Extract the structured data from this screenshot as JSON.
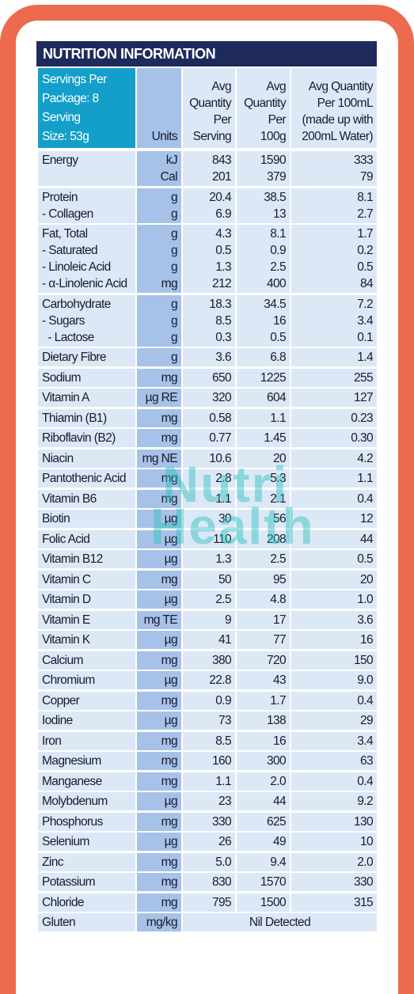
{
  "header": {
    "title": "NUTRITION INFORMATION",
    "servings": [
      "Servings Per",
      "Package: 8",
      "Serving",
      "Size: 53g"
    ],
    "units": "Units",
    "serving": [
      "Avg",
      "Quantity",
      "Per",
      "Serving"
    ],
    "per100g": [
      "Avg",
      "Quantity",
      "Per",
      "100g"
    ],
    "per100ml": [
      "Avg Quantity",
      "Per 100mL",
      "(made up with",
      "200mL Water)"
    ]
  },
  "rows": [
    {
      "nutrient": [
        "Energy",
        ""
      ],
      "units": [
        "kJ",
        "Cal"
      ],
      "serving": [
        "843",
        "201"
      ],
      "per100g": [
        "1590",
        "379"
      ],
      "per100ml": [
        "333",
        "79"
      ]
    },
    {
      "nutrient": [
        "Protein",
        "- Collagen"
      ],
      "units": [
        "g",
        "g"
      ],
      "serving": [
        "20.4",
        "6.9"
      ],
      "per100g": [
        "38.5",
        "13"
      ],
      "per100ml": [
        "8.1",
        "2.7"
      ]
    },
    {
      "nutrient": [
        "Fat, Total",
        "- Saturated",
        "- Linoleic Acid",
        "- α-Linolenic Acid"
      ],
      "units": [
        "g",
        "g",
        "g",
        "mg"
      ],
      "serving": [
        "4.3",
        "0.5",
        "1.3",
        "212"
      ],
      "per100g": [
        "8.1",
        "0.9",
        "2.5",
        "400"
      ],
      "per100ml": [
        "1.7",
        "0.2",
        "0.5",
        "84"
      ]
    },
    {
      "nutrient": [
        "Carbohydrate",
        "- Sugars",
        "  - Lactose"
      ],
      "units": [
        "g",
        "g",
        "g"
      ],
      "serving": [
        "18.3",
        "8.5",
        "0.3"
      ],
      "per100g": [
        "34.5",
        "16",
        "0.5"
      ],
      "per100ml": [
        "7.2",
        "3.4",
        "0.1"
      ]
    },
    {
      "nutrient": [
        "Dietary Fibre"
      ],
      "units": [
        "g"
      ],
      "serving": [
        "3.6"
      ],
      "per100g": [
        "6.8"
      ],
      "per100ml": [
        "1.4"
      ]
    },
    {
      "nutrient": [
        "Sodium"
      ],
      "units": [
        "mg"
      ],
      "serving": [
        "650"
      ],
      "per100g": [
        "1225"
      ],
      "per100ml": [
        "255"
      ]
    },
    {
      "nutrient": [
        "Vitamin A"
      ],
      "units": [
        "µg RE"
      ],
      "serving": [
        "320"
      ],
      "per100g": [
        "604"
      ],
      "per100ml": [
        "127"
      ]
    },
    {
      "nutrient": [
        "Thiamin (B1)"
      ],
      "units": [
        "mg"
      ],
      "serving": [
        "0.58"
      ],
      "per100g": [
        "1.1"
      ],
      "per100ml": [
        "0.23"
      ]
    },
    {
      "nutrient": [
        "Riboflavin (B2)"
      ],
      "units": [
        "mg"
      ],
      "serving": [
        "0.77"
      ],
      "per100g": [
        "1.45"
      ],
      "per100ml": [
        "0.30"
      ]
    },
    {
      "nutrient": [
        "Niacin"
      ],
      "units": [
        "mg NE"
      ],
      "serving": [
        "10.6"
      ],
      "per100g": [
        "20"
      ],
      "per100ml": [
        "4.2"
      ]
    },
    {
      "nutrient": [
        "Pantothenic Acid"
      ],
      "units": [
        "mg"
      ],
      "serving": [
        "2.8"
      ],
      "per100g": [
        "5.3"
      ],
      "per100ml": [
        "1.1"
      ]
    },
    {
      "nutrient": [
        "Vitamin B6"
      ],
      "units": [
        "mg"
      ],
      "serving": [
        "1.1"
      ],
      "per100g": [
        "2.1"
      ],
      "per100ml": [
        "0.4"
      ]
    },
    {
      "nutrient": [
        "Biotin"
      ],
      "units": [
        "µg"
      ],
      "serving": [
        "30"
      ],
      "per100g": [
        "56"
      ],
      "per100ml": [
        "12"
      ]
    },
    {
      "nutrient": [
        "Folic Acid"
      ],
      "units": [
        "µg"
      ],
      "serving": [
        "110"
      ],
      "per100g": [
        "208"
      ],
      "per100ml": [
        "44"
      ]
    },
    {
      "nutrient": [
        "Vitamin B12"
      ],
      "units": [
        "µg"
      ],
      "serving": [
        "1.3"
      ],
      "per100g": [
        "2.5"
      ],
      "per100ml": [
        "0.5"
      ]
    },
    {
      "nutrient": [
        "Vitamin C"
      ],
      "units": [
        "mg"
      ],
      "serving": [
        "50"
      ],
      "per100g": [
        "95"
      ],
      "per100ml": [
        "20"
      ]
    },
    {
      "nutrient": [
        "Vitamin D"
      ],
      "units": [
        "µg"
      ],
      "serving": [
        "2.5"
      ],
      "per100g": [
        "4.8"
      ],
      "per100ml": [
        "1.0"
      ]
    },
    {
      "nutrient": [
        "Vitamin E"
      ],
      "units": [
        "mg TE"
      ],
      "serving": [
        "9"
      ],
      "per100g": [
        "17"
      ],
      "per100ml": [
        "3.6"
      ]
    },
    {
      "nutrient": [
        "Vitamin K"
      ],
      "units": [
        "µg"
      ],
      "serving": [
        "41"
      ],
      "per100g": [
        "77"
      ],
      "per100ml": [
        "16"
      ]
    },
    {
      "nutrient": [
        "Calcium"
      ],
      "units": [
        "mg"
      ],
      "serving": [
        "380"
      ],
      "per100g": [
        "720"
      ],
      "per100ml": [
        "150"
      ]
    },
    {
      "nutrient": [
        "Chromium"
      ],
      "units": [
        "µg"
      ],
      "serving": [
        "22.8"
      ],
      "per100g": [
        "43"
      ],
      "per100ml": [
        "9.0"
      ]
    },
    {
      "nutrient": [
        "Copper"
      ],
      "units": [
        "mg"
      ],
      "serving": [
        "0.9"
      ],
      "per100g": [
        "1.7"
      ],
      "per100ml": [
        "0.4"
      ]
    },
    {
      "nutrient": [
        "Iodine"
      ],
      "units": [
        "µg"
      ],
      "serving": [
        "73"
      ],
      "per100g": [
        "138"
      ],
      "per100ml": [
        "29"
      ]
    },
    {
      "nutrient": [
        "Iron"
      ],
      "units": [
        "mg"
      ],
      "serving": [
        "8.5"
      ],
      "per100g": [
        "16"
      ],
      "per100ml": [
        "3.4"
      ]
    },
    {
      "nutrient": [
        "Magnesium"
      ],
      "units": [
        "mg"
      ],
      "serving": [
        "160"
      ],
      "per100g": [
        "300"
      ],
      "per100ml": [
        "63"
      ]
    },
    {
      "nutrient": [
        "Manganese"
      ],
      "units": [
        "mg"
      ],
      "serving": [
        "1.1"
      ],
      "per100g": [
        "2.0"
      ],
      "per100ml": [
        "0.4"
      ]
    },
    {
      "nutrient": [
        "Molybdenum"
      ],
      "units": [
        "µg"
      ],
      "serving": [
        "23"
      ],
      "per100g": [
        "44"
      ],
      "per100ml": [
        "9.2"
      ]
    },
    {
      "nutrient": [
        "Phosphorus"
      ],
      "units": [
        "mg"
      ],
      "serving": [
        "330"
      ],
      "per100g": [
        "625"
      ],
      "per100ml": [
        "130"
      ]
    },
    {
      "nutrient": [
        "Selenium"
      ],
      "units": [
        "µg"
      ],
      "serving": [
        "26"
      ],
      "per100g": [
        "49"
      ],
      "per100ml": [
        "10"
      ]
    },
    {
      "nutrient": [
        "Zinc"
      ],
      "units": [
        "mg"
      ],
      "serving": [
        "5.0"
      ],
      "per100g": [
        "9.4"
      ],
      "per100ml": [
        "2.0"
      ]
    },
    {
      "nutrient": [
        "Potassium"
      ],
      "units": [
        "mg"
      ],
      "serving": [
        "830"
      ],
      "per100g": [
        "1570"
      ],
      "per100ml": [
        "330"
      ]
    },
    {
      "nutrient": [
        "Chloride"
      ],
      "units": [
        "mg"
      ],
      "serving": [
        "795"
      ],
      "per100g": [
        "1500"
      ],
      "per100ml": [
        "315"
      ]
    },
    {
      "nutrient": [
        "Gluten"
      ],
      "units": [
        "mg/kg"
      ],
      "note": "Nil Detected"
    }
  ],
  "watermark": {
    "line1": "Nutri",
    "line2": "Health"
  }
}
